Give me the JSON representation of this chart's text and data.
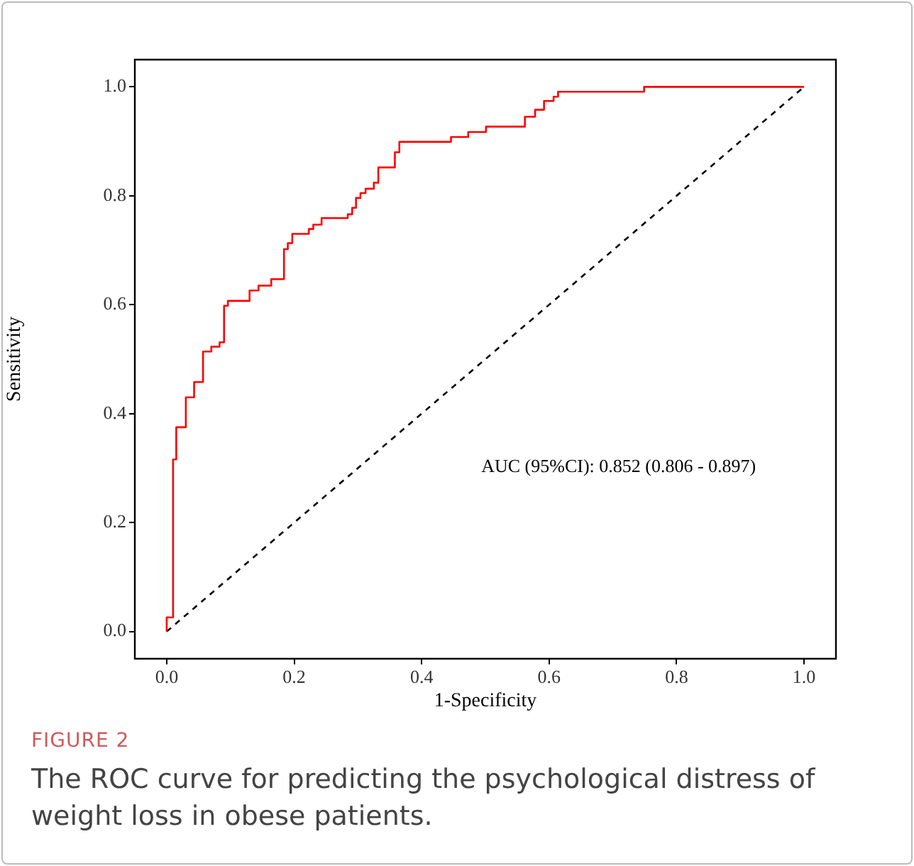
{
  "chart_data": {
    "type": "step",
    "xlabel": "1-Specificity",
    "ylabel": "Sensitivity",
    "series": [
      {
        "color": "#ff0000",
        "line_style": "solid",
        "x": [
          0,
          0,
          0.01,
          0.015,
          0.03,
          0.043,
          0.057,
          0.07,
          0.083,
          0.09,
          0.096,
          0.13,
          0.144,
          0.164,
          0.184,
          0.19,
          0.197,
          0.223,
          0.23,
          0.243,
          0.284,
          0.291,
          0.297,
          0.304,
          0.312,
          0.325,
          0.332,
          0.358,
          0.365,
          0.446,
          0.473,
          0.501,
          0.562,
          0.578,
          0.592,
          0.607,
          0.614,
          0.749,
          1
        ],
        "values": [
          0,
          0.026,
          0.316,
          0.375,
          0.43,
          0.458,
          0.514,
          0.523,
          0.531,
          0.598,
          0.607,
          0.626,
          0.635,
          0.647,
          0.702,
          0.713,
          0.73,
          0.739,
          0.747,
          0.759,
          0.766,
          0.778,
          0.796,
          0.805,
          0.813,
          0.824,
          0.852,
          0.88,
          0.899,
          0.908,
          0.917,
          0.927,
          0.945,
          0.958,
          0.974,
          0.982,
          0.991,
          1,
          1
        ]
      },
      {
        "type": "line",
        "color": "#000000",
        "line_style": "dashed",
        "x": [
          0,
          1
        ],
        "values": [
          0,
          1
        ]
      }
    ],
    "xlim": [
      -0.05,
      1.05
    ],
    "ylim": [
      -0.05,
      1.05
    ],
    "xticks": [
      {
        "value": 0,
        "label": "0.0"
      },
      0.2,
      0.4,
      0.6,
      0.8,
      {
        "value": 1,
        "label": "1.0"
      }
    ],
    "yticks": [
      {
        "value": 0,
        "label": "0.0"
      },
      0.2,
      0.4,
      0.6,
      0.8,
      {
        "value": 1,
        "label": "1.0"
      }
    ],
    "grid": false,
    "legend": false,
    "marker": "none",
    "annotations": [
      "AUC (95%CI): 0.852 (0.806 - 0.897)",
      "FIGURE 2",
      "The ROC curve for predicting the psychological distress of weight loss in obese patients."
    ]
  }
}
